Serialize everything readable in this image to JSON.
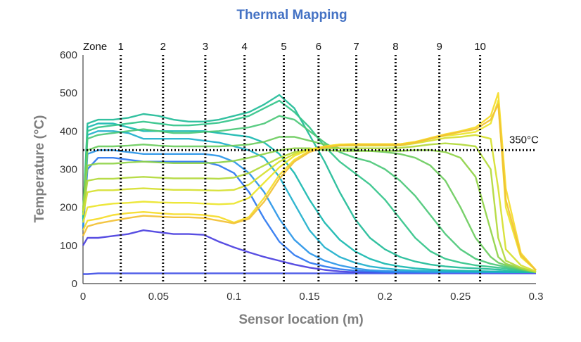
{
  "chart_data": {
    "type": "line",
    "title": "Thermal Mapping",
    "xlabel": "Sensor location (m)",
    "ylabel": "Temperature (°C)",
    "xlim": [
      0,
      0.3
    ],
    "ylim": [
      0,
      600
    ],
    "x_ticks": [
      "0",
      "0.05",
      "0.1",
      "0.15",
      "0.2",
      "0.25",
      "0.3"
    ],
    "y_ticks": [
      "0",
      "100",
      "200",
      "300",
      "400",
      "500",
      "600"
    ],
    "x_tick_values": [
      0,
      0.05,
      0.1,
      0.15,
      0.2,
      0.25,
      0.3
    ],
    "y_tick_values": [
      0,
      100,
      200,
      300,
      400,
      500,
      600
    ],
    "zone_prefix": "Zone",
    "zones": [
      {
        "label": "1",
        "x": 0.025
      },
      {
        "label": "2",
        "x": 0.053
      },
      {
        "label": "3",
        "x": 0.081
      },
      {
        "label": "4",
        "x": 0.107
      },
      {
        "label": "5",
        "x": 0.133
      },
      {
        "label": "6",
        "x": 0.156
      },
      {
        "label": "7",
        "x": 0.181
      },
      {
        "label": "8",
        "x": 0.207
      },
      {
        "label": "9",
        "x": 0.236
      },
      {
        "label": "10",
        "x": 0.263
      }
    ],
    "reference_line": {
      "y": 350,
      "label": "350°C",
      "style": "dotted"
    },
    "x": [
      0,
      0.003,
      0.01,
      0.02,
      0.03,
      0.04,
      0.05,
      0.06,
      0.07,
      0.08,
      0.09,
      0.1,
      0.11,
      0.12,
      0.13,
      0.14,
      0.15,
      0.16,
      0.17,
      0.18,
      0.19,
      0.2,
      0.21,
      0.22,
      0.23,
      0.24,
      0.25,
      0.26,
      0.27,
      0.275,
      0.28,
      0.29,
      0.3
    ],
    "series": [
      {
        "color": "#4a3fe0",
        "values": [
          100,
          120,
          120,
          125,
          130,
          140,
          135,
          130,
          130,
          128,
          110,
          95,
          82,
          70,
          60,
          50,
          42,
          36,
          32,
          30,
          30,
          30,
          30,
          30,
          30,
          30,
          30,
          30,
          30,
          30,
          30,
          30,
          30
        ]
      },
      {
        "color": "#3f4ee6",
        "values": [
          25,
          25,
          27,
          27,
          27,
          27,
          27,
          27,
          27,
          27,
          27,
          27,
          27,
          27,
          27,
          27,
          27,
          27,
          27,
          27,
          27,
          27,
          27,
          27,
          27,
          27,
          27,
          27,
          27,
          27,
          27,
          27,
          27
        ]
      },
      {
        "color": "#2e78f0",
        "values": [
          140,
          300,
          330,
          330,
          325,
          320,
          320,
          320,
          320,
          320,
          310,
          290,
          240,
          170,
          110,
          75,
          55,
          45,
          38,
          34,
          32,
          30,
          30,
          30,
          30,
          30,
          30,
          30,
          30,
          30,
          30,
          30,
          30
        ]
      },
      {
        "color": "#2a96e8",
        "values": [
          150,
          340,
          350,
          350,
          345,
          340,
          340,
          340,
          340,
          340,
          335,
          320,
          290,
          240,
          170,
          115,
          80,
          60,
          48,
          40,
          35,
          33,
          32,
          31,
          30,
          30,
          30,
          30,
          30,
          30,
          30,
          30,
          30
        ]
      },
      {
        "color": "#1fb0cc",
        "values": [
          160,
          390,
          400,
          400,
          395,
          380,
          380,
          380,
          380,
          375,
          370,
          360,
          350,
          330,
          280,
          210,
          140,
          95,
          70,
          55,
          45,
          40,
          36,
          34,
          33,
          32,
          32,
          31,
          31,
          31,
          30,
          30,
          30
        ]
      },
      {
        "color": "#18b8b0",
        "values": [
          170,
          410,
          420,
          420,
          410,
          400,
          400,
          400,
          400,
          400,
          395,
          390,
          385,
          370,
          340,
          290,
          220,
          160,
          115,
          85,
          65,
          52,
          45,
          40,
          37,
          35,
          34,
          33,
          32,
          32,
          31,
          30,
          30
        ]
      },
      {
        "color": "#22bc98",
        "values": [
          175,
          420,
          430,
          430,
          435,
          445,
          440,
          430,
          425,
          425,
          430,
          440,
          450,
          470,
          495,
          460,
          390,
          320,
          240,
          170,
          120,
          90,
          70,
          58,
          50,
          45,
          42,
          40,
          38,
          37,
          35,
          33,
          30
        ]
      },
      {
        "color": "#33c48a",
        "values": [
          180,
          400,
          410,
          415,
          420,
          425,
          420,
          415,
          415,
          418,
          422,
          430,
          440,
          460,
          480,
          450,
          410,
          360,
          320,
          290,
          260,
          220,
          170,
          120,
          85,
          65,
          55,
          48,
          44,
          42,
          40,
          35,
          30
        ]
      },
      {
        "color": "#4cc878",
        "values": [
          185,
          380,
          390,
          395,
          400,
          405,
          400,
          395,
          395,
          398,
          400,
          405,
          410,
          420,
          440,
          430,
          400,
          370,
          345,
          330,
          320,
          300,
          270,
          230,
          180,
          130,
          90,
          65,
          52,
          48,
          44,
          36,
          30
        ]
      },
      {
        "color": "#6ccc5e",
        "values": [
          190,
          350,
          360,
          360,
          362,
          365,
          362,
          360,
          360,
          360,
          360,
          362,
          365,
          372,
          385,
          385,
          375,
          365,
          355,
          350,
          348,
          345,
          340,
          330,
          310,
          270,
          200,
          120,
          70,
          55,
          48,
          38,
          30
        ]
      },
      {
        "color": "#8fd248",
        "values": [
          195,
          310,
          315,
          315,
          318,
          320,
          318,
          316,
          316,
          316,
          318,
          322,
          330,
          340,
          350,
          355,
          355,
          350,
          348,
          348,
          348,
          348,
          348,
          350,
          350,
          345,
          330,
          280,
          140,
          70,
          52,
          40,
          30
        ]
      },
      {
        "color": "#b2d93a",
        "values": [
          190,
          270,
          275,
          275,
          278,
          280,
          278,
          276,
          276,
          276,
          275,
          278,
          290,
          310,
          330,
          345,
          352,
          355,
          355,
          355,
          355,
          355,
          356,
          360,
          365,
          368,
          365,
          360,
          300,
          120,
          60,
          42,
          30
        ]
      },
      {
        "color": "#d6df2e",
        "values": [
          180,
          240,
          245,
          245,
          248,
          250,
          248,
          246,
          246,
          245,
          244,
          246,
          260,
          290,
          320,
          340,
          352,
          358,
          362,
          362,
          362,
          362,
          362,
          368,
          375,
          382,
          385,
          390,
          380,
          250,
          90,
          48,
          32
        ]
      },
      {
        "color": "#ece52a",
        "values": [
          160,
          200,
          205,
          210,
          212,
          215,
          213,
          212,
          212,
          210,
          208,
          210,
          225,
          265,
          305,
          335,
          352,
          360,
          365,
          366,
          366,
          366,
          366,
          372,
          380,
          388,
          392,
          398,
          420,
          480,
          200,
          70,
          35
        ]
      },
      {
        "color": "#f5dc28",
        "values": [
          140,
          165,
          170,
          180,
          185,
          188,
          185,
          182,
          182,
          180,
          175,
          160,
          175,
          225,
          285,
          325,
          348,
          360,
          365,
          366,
          366,
          366,
          366,
          372,
          382,
          392,
          400,
          410,
          440,
          500,
          250,
          80,
          35
        ]
      },
      {
        "color": "#f2c033",
        "values": [
          125,
          150,
          158,
          165,
          172,
          178,
          176,
          174,
          174,
          172,
          165,
          158,
          170,
          215,
          275,
          320,
          345,
          358,
          362,
          364,
          364,
          364,
          364,
          370,
          380,
          390,
          398,
          405,
          430,
          470,
          220,
          75,
          35
        ]
      }
    ]
  }
}
